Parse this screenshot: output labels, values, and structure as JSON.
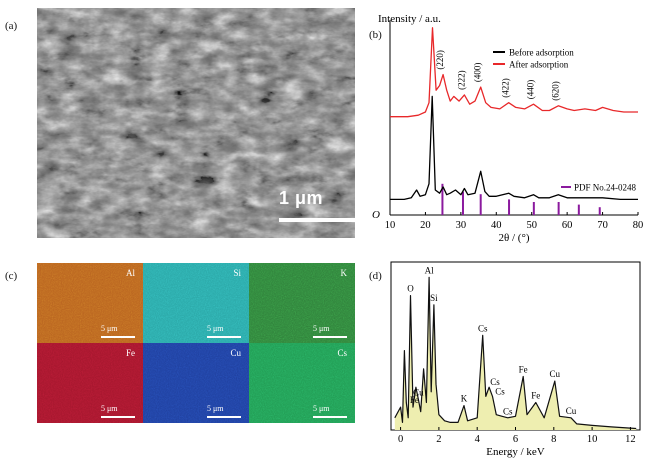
{
  "panels": {
    "a": "(a)",
    "b": "(b)",
    "c": "(c)",
    "d": "(d)"
  },
  "sem": {
    "scale_label": "1 μm"
  },
  "eds_maps": [
    {
      "element": "Al",
      "scale": "5 μm",
      "color": "#b8621f"
    },
    {
      "element": "Si",
      "scale": "5 μm",
      "color": "#2aa6a6"
    },
    {
      "element": "K",
      "scale": "5 μm",
      "color": "#2f7f3a"
    },
    {
      "element": "Fe",
      "scale": "5 μm",
      "color": "#a3162c"
    },
    {
      "element": "Cu",
      "scale": "5 μm",
      "color": "#1f3f9e"
    },
    {
      "element": "Cs",
      "scale": "5 μm",
      "color": "#219a52"
    }
  ],
  "chart_data": [
    {
      "type": "line",
      "ylabel": "Intensity / a.u.",
      "xlabel": "2θ / (°)",
      "xlim": [
        10,
        80
      ],
      "xticks": [
        10,
        20,
        30,
        40,
        50,
        60,
        70,
        80
      ],
      "y_origin_label": "O",
      "legend_position": "top-right",
      "series": [
        {
          "name": "Before adsorption",
          "color": "#000000",
          "x": [
            10,
            14,
            16,
            17.5,
            18.5,
            20,
            21,
            21.9,
            22.8,
            24,
            25,
            26,
            27,
            28.5,
            30,
            31,
            32,
            34,
            35.6,
            36.8,
            38,
            40,
            43.5,
            45,
            48,
            50.5,
            52,
            55,
            57.5,
            60,
            65,
            70,
            75,
            80
          ],
          "y": [
            10,
            10,
            11,
            16,
            12,
            13,
            20,
            76,
            16,
            14,
            18,
            13,
            14,
            16,
            13,
            17,
            13,
            14,
            28,
            15,
            12,
            12,
            14,
            12,
            11,
            13,
            11,
            11,
            13,
            11,
            11,
            11,
            10,
            10
          ]
        },
        {
          "name": "After adsorption",
          "color": "#e8282a",
          "x": [
            10,
            15,
            18,
            20,
            21,
            22,
            23,
            24,
            25,
            26,
            27,
            28,
            29.5,
            31,
            32.5,
            34,
            35.6,
            37,
            38.5,
            41,
            43.5,
            45.5,
            48,
            50.5,
            53,
            55,
            57.5,
            60,
            62,
            65,
            68,
            70,
            73,
            76,
            80
          ],
          "y": [
            63,
            63,
            64,
            66,
            72,
            120,
            80,
            83,
            90,
            80,
            73,
            76,
            73,
            77,
            71,
            73,
            82,
            72,
            69,
            68,
            72,
            69,
            68,
            71,
            67,
            67,
            70,
            68,
            67,
            68,
            67,
            69,
            67,
            66,
            66
          ]
        }
      ],
      "peak_labels": [
        {
          "label": "(220)",
          "x": 25
        },
        {
          "label": "(222)",
          "x": 31
        },
        {
          "label": "(400)",
          "x": 35.6
        },
        {
          "label": "(422)",
          "x": 43.5
        },
        {
          "label": "(440)",
          "x": 50.5
        },
        {
          "label": "(620)",
          "x": 57.5
        }
      ],
      "reference": {
        "name": "PDF No.24-0248",
        "color": "#8b1a9e",
        "x": [
          24.8,
          30.6,
          35.6,
          43.6,
          50.6,
          57.6,
          63.3,
          69.2
        ],
        "h": [
          12,
          9,
          8,
          6,
          5,
          5,
          4,
          3
        ]
      }
    },
    {
      "type": "line",
      "xlabel": "Energy / keV",
      "xlim": [
        -0.5,
        12.5
      ],
      "xticks": [
        0,
        2,
        4,
        6,
        8,
        10,
        12
      ],
      "series": [
        {
          "name": "",
          "color": "#111111",
          "x": [
            -0.3,
            0,
            0.1,
            0.2,
            0.3,
            0.4,
            0.52,
            0.65,
            0.8,
            0.93,
            1.05,
            1.2,
            1.35,
            1.49,
            1.6,
            1.74,
            1.85,
            2.0,
            2.3,
            2.6,
            3.0,
            3.31,
            3.5,
            4.0,
            4.29,
            4.45,
            4.62,
            4.8,
            5.0,
            5.3,
            5.6,
            6.0,
            6.4,
            6.6,
            7.06,
            7.5,
            8.05,
            8.3,
            8.9,
            9.2,
            10,
            11,
            12.3
          ],
          "y": [
            8,
            15,
            5,
            52,
            18,
            8,
            88,
            15,
            28,
            20,
            12,
            40,
            18,
            100,
            25,
            82,
            30,
            10,
            6,
            5,
            5,
            16,
            6,
            8,
            62,
            22,
            28,
            22,
            10,
            9,
            8,
            9,
            35,
            10,
            18,
            8,
            32,
            9,
            8,
            4,
            3,
            2,
            1
          ]
        }
      ],
      "peak_labels": [
        {
          "label": "O",
          "x": 0.52
        },
        {
          "label": "Cu",
          "x": 0.93
        },
        {
          "label": "Fe",
          "x": 0.72
        },
        {
          "label": "Al",
          "x": 1.49
        },
        {
          "label": "Si",
          "x": 1.74
        },
        {
          "label": "K",
          "x": 3.31
        },
        {
          "label": "Cs",
          "x": 4.29
        },
        {
          "label": "Cs",
          "x": 4.62
        },
        {
          "label": "Cs",
          "x": 4.88
        },
        {
          "label": "Cs",
          "x": 5.28
        },
        {
          "label": "Fe",
          "x": 6.4
        },
        {
          "label": "Fe",
          "x": 7.06
        },
        {
          "label": "Cu",
          "x": 8.05
        },
        {
          "label": "Cu",
          "x": 8.9
        }
      ]
    }
  ]
}
